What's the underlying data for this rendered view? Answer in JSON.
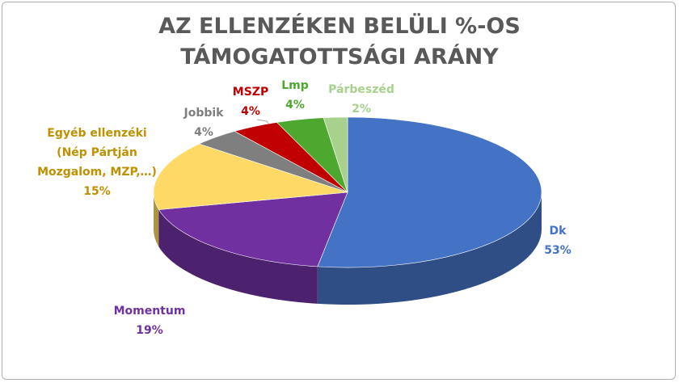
{
  "chart_data": {
    "type": "pie3d",
    "title": "AZ ELLENZÉKEN BELÜLI %-OS TÁMOGATOTTSÁGI ARÁNY",
    "categories": [
      "Dk",
      "Momentum",
      "Egyéb ellenzéki (Nép Pártján Mozgalom, MZP,…)",
      "Jobbik",
      "MSZP",
      "Lmp",
      "Párbeszéd"
    ],
    "values": [
      53,
      19,
      15,
      4,
      4,
      4,
      2
    ],
    "value_labels": [
      "53%",
      "19%",
      "15%",
      "4%",
      "4%",
      "4%",
      "2%"
    ],
    "colors": [
      "#4472c4",
      "#7030a0",
      "#ffd966",
      "#7f7f7f",
      "#c00000",
      "#4ea72e",
      "#a9d18e"
    ],
    "label_colors": [
      "#4472c4",
      "#7030a0",
      "#bf9000",
      "#7f7f7f",
      "#c00000",
      "#4ea72e",
      "#a9d18e"
    ]
  }
}
